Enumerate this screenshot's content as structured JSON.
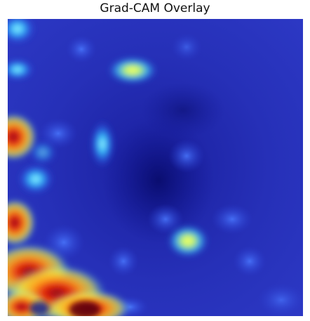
{
  "title": "Grad-CAM Overlay",
  "colors": {
    "base_blue": "#1c24b8",
    "deep_blue": "#0c0f7a",
    "cyan": "#3fd8ff",
    "yellow": "#fff34a",
    "orange": "#ff8a1a",
    "red": "#c41818",
    "dark_red": "#6a0810"
  },
  "colormap": "jet"
}
